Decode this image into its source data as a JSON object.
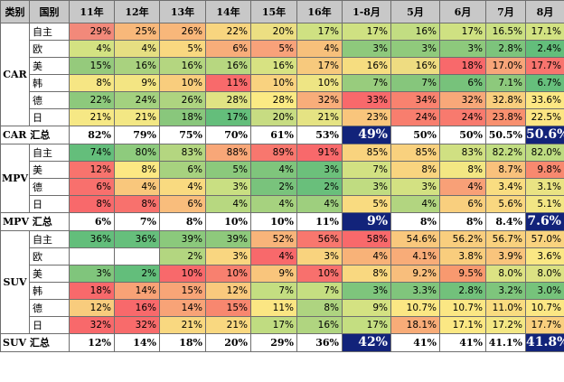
{
  "header": {
    "category": "类别",
    "country": "国别",
    "cols": [
      "11年",
      "12年",
      "13年",
      "14年",
      "15年",
      "16年",
      "1-8月",
      "5月",
      "6月",
      "7月",
      "8月"
    ]
  },
  "groups": [
    {
      "name": "CAR",
      "rows": [
        {
          "country": "自主",
          "values": [
            "29%",
            "25%",
            "26%",
            "22%",
            "20%",
            "17%",
            "17%",
            "16%",
            "17%",
            "16.5%",
            "17.1%"
          ],
          "colors": [
            "#f2897a",
            "#f8b87a",
            "#f8b77a",
            "#f8d57f",
            "#ecdf82",
            "#cfe182",
            "#cfe182",
            "#c2dd82",
            "#cfe182",
            "#cadf82",
            "#d2e282"
          ]
        },
        {
          "country": "欧",
          "values": [
            "4%",
            "4%",
            "5%",
            "6%",
            "5%",
            "4%",
            "3%",
            "3%",
            "3%",
            "2.8%",
            "2.4%"
          ],
          "colors": [
            "#d3e282",
            "#e6df82",
            "#f9d880",
            "#f8ad7a",
            "#f8a27a",
            "#f7c07b",
            "#8ec97c",
            "#90ca7c",
            "#8dc97c",
            "#7dc47c",
            "#63be7b"
          ]
        },
        {
          "country": "美",
          "values": [
            "15%",
            "16%",
            "16%",
            "16%",
            "16%",
            "17%",
            "16%",
            "16%",
            "18%",
            "17.0%",
            "17.7%"
          ],
          "colors": [
            "#95ca7c",
            "#a9d27f",
            "#b4d680",
            "#b7d780",
            "#d7e282",
            "#f7c97d",
            "#f6dd80",
            "#eedc81",
            "#f8696b",
            "#f8a579",
            "#f8746e"
          ]
        },
        {
          "country": "韩",
          "values": [
            "8%",
            "9%",
            "10%",
            "11%",
            "10%",
            "10%",
            "7%",
            "7%",
            "6%",
            "7.1%",
            "6.7%"
          ],
          "colors": [
            "#f6e684",
            "#f3e583",
            "#f9cd7d",
            "#f86a6b",
            "#f9d27f",
            "#eee584",
            "#98cc7d",
            "#86c67c",
            "#77c27b",
            "#8dc97c",
            "#66bf7c"
          ]
        },
        {
          "country": "德",
          "values": [
            "22%",
            "24%",
            "26%",
            "28%",
            "28%",
            "32%",
            "33%",
            "34%",
            "32%",
            "32.8%",
            "33.6%"
          ],
          "colors": [
            "#8dc97c",
            "#a3d17f",
            "#aed480",
            "#e0e383",
            "#fbea84",
            "#f8ad7a",
            "#f8696b",
            "#f8826f",
            "#f8a879",
            "#f9cf7e",
            "#fce884"
          ]
        },
        {
          "country": "日",
          "values": [
            "21%",
            "21%",
            "18%",
            "17%",
            "20%",
            "21%",
            "23%",
            "24%",
            "24%",
            "23.8%",
            "22.5%"
          ],
          "colors": [
            "#f6e885",
            "#f3e784",
            "#89c77c",
            "#64be7b",
            "#c7dc82",
            "#e5e383",
            "#f9c57c",
            "#f87e6e",
            "#f87a6e",
            "#f8906f",
            "#fce583"
          ]
        }
      ],
      "total": {
        "label": "CAR 汇总",
        "values": [
          "82%",
          "79%",
          "75%",
          "70%",
          "61%",
          "53%",
          "49%",
          "50%",
          "50%",
          "50.5%",
          "50.6%"
        ]
      }
    },
    {
      "name": "MPV",
      "rows": [
        {
          "country": "自主",
          "values": [
            "74%",
            "80%",
            "83%",
            "88%",
            "89%",
            "91%",
            "85%",
            "85%",
            "83%",
            "82.2%",
            "82.0%"
          ],
          "colors": [
            "#64be7b",
            "#8ecb7d",
            "#b4d680",
            "#f8a778",
            "#f8776e",
            "#f8696b",
            "#f9d37e",
            "#f9d17e",
            "#d0e082",
            "#c1dd82",
            "#bddb81"
          ]
        },
        {
          "country": "美",
          "values": [
            "12%",
            "8%",
            "6%",
            "5%",
            "4%",
            "3%",
            "7%",
            "8%",
            "8%",
            "8.7%",
            "9.8%"
          ],
          "colors": [
            "#f8736d",
            "#fce883",
            "#a7d27f",
            "#8bc97c",
            "#7fc57c",
            "#6cc07b",
            "#d2e182",
            "#f9d47f",
            "#f3e783",
            "#f9c17c",
            "#f8896f"
          ]
        },
        {
          "country": "德",
          "values": [
            "6%",
            "4%",
            "4%",
            "3%",
            "2%",
            "2%",
            "3%",
            "3%",
            "4%",
            "3.4%",
            "3.1%"
          ],
          "colors": [
            "#f8706d",
            "#f9c77c",
            "#f9da80",
            "#c9df82",
            "#79c37c",
            "#69bf7b",
            "#c0dc81",
            "#d3e182",
            "#f8a077",
            "#f9dd81",
            "#e9e383"
          ]
        },
        {
          "country": "日",
          "values": [
            "8%",
            "8%",
            "6%",
            "4%",
            "4%",
            "4%",
            "5%",
            "4%",
            "6%",
            "5.6%",
            "5.1%"
          ],
          "colors": [
            "#f8696b",
            "#f8716d",
            "#f9bd7c",
            "#b7d880",
            "#a6d27f",
            "#9ecf7e",
            "#f9db80",
            "#b2d580",
            "#f9cf7e",
            "#f9d780",
            "#f2e684"
          ]
        }
      ],
      "total": {
        "label": "MPV 汇总",
        "values": [
          "6%",
          "7%",
          "8%",
          "10%",
          "10%",
          "11%",
          "9%",
          "8%",
          "8%",
          "8.4%",
          "7.6%"
        ]
      }
    },
    {
      "name": "SUV",
      "rows": [
        {
          "country": "自主",
          "values": [
            "36%",
            "36%",
            "39%",
            "39%",
            "52%",
            "56%",
            "58%",
            "54.6%",
            "56.2%",
            "56.7%",
            "57.0%"
          ],
          "colors": [
            "#63be7b",
            "#66bf7c",
            "#8bc97c",
            "#8ec97c",
            "#f8b47a",
            "#f8776e",
            "#f8696b",
            "#f9c87d",
            "#f9ce7e",
            "#f9d17e",
            "#f9d37f"
          ]
        },
        {
          "country": "欧",
          "values": [
            "",
            "",
            "2%",
            "3%",
            "4%",
            "3%",
            "4%",
            "4.1%",
            "3.8%",
            "3.9%",
            "3.6%"
          ],
          "colors": [
            "#ffffff",
            "#ffffff",
            "#b3d680",
            "#f9d680",
            "#f8696b",
            "#f9d37e",
            "#f8b278",
            "#f8ac78",
            "#f9cd7d",
            "#f9c47c",
            "#fae784"
          ]
        },
        {
          "country": "美",
          "values": [
            "3%",
            "2%",
            "10%",
            "10%",
            "9%",
            "10%",
            "8%",
            "9.2%",
            "9.5%",
            "8.0%",
            "8.0%"
          ],
          "colors": [
            "#80c57c",
            "#63be7b",
            "#f8696b",
            "#f8806f",
            "#f9c57c",
            "#f8706d",
            "#f9d880",
            "#f8be7c",
            "#f8996f",
            "#dce283",
            "#dbe283"
          ]
        },
        {
          "country": "韩",
          "values": [
            "18%",
            "14%",
            "15%",
            "12%",
            "7%",
            "7%",
            "3%",
            "3.3%",
            "2.8%",
            "3.2%",
            "3.0%"
          ],
          "colors": [
            "#f8696b",
            "#f8a276",
            "#f8a577",
            "#f9c97d",
            "#c4de81",
            "#c5de81",
            "#7ec57c",
            "#80c57c",
            "#72c17b",
            "#7ec57c",
            "#76c37b"
          ]
        },
        {
          "country": "德",
          "values": [
            "12%",
            "16%",
            "14%",
            "15%",
            "11%",
            "8%",
            "9%",
            "10.7%",
            "10.7%",
            "11.0%",
            "10.7%"
          ],
          "colors": [
            "#f8cc7d",
            "#f8696b",
            "#f8a377",
            "#f8876f",
            "#fbe683",
            "#aed480",
            "#d4e282",
            "#fbe784",
            "#fbe784",
            "#f9dc80",
            "#fbe784"
          ]
        },
        {
          "country": "日",
          "values": [
            "32%",
            "32%",
            "21%",
            "21%",
            "17%",
            "16%",
            "17%",
            "18.1%",
            "17.1%",
            "17.2%",
            "17.7%"
          ],
          "colors": [
            "#f8696b",
            "#f86b6b",
            "#f9d880",
            "#f9d880",
            "#c0dc81",
            "#b0d580",
            "#c4de81",
            "#f8ac78",
            "#fbe884",
            "#f3e784",
            "#f9cf7e"
          ]
        }
      ],
      "total": {
        "label": "SUV 汇总",
        "values": [
          "12%",
          "14%",
          "18%",
          "20%",
          "29%",
          "36%",
          "42%",
          "41%",
          "41%",
          "41.1%",
          "41.8%"
        ]
      }
    }
  ],
  "highlight_cols": [
    6,
    10
  ]
}
